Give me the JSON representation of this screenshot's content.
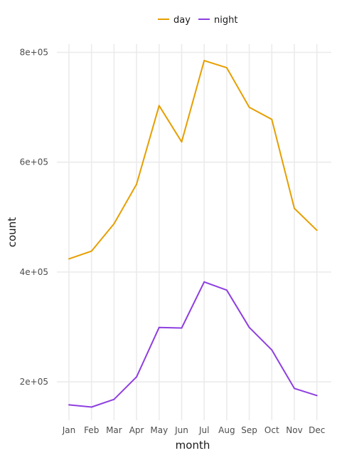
{
  "chart_data": {
    "type": "line",
    "xlabel": "month",
    "ylabel": "count",
    "categories": [
      "Jan",
      "Feb",
      "Mar",
      "Apr",
      "May",
      "Jun",
      "Jul",
      "Aug",
      "Sep",
      "Oct",
      "Nov",
      "Dec"
    ],
    "series": [
      {
        "name": "day",
        "color": "#E69F00",
        "values": [
          424000,
          438000,
          488000,
          560000,
          703000,
          637000,
          785000,
          772000,
          700000,
          678000,
          516000,
          476000
        ]
      },
      {
        "name": "night",
        "color": "#8E3FE0",
        "values": [
          158000,
          154000,
          168000,
          209000,
          299000,
          298000,
          382000,
          367000,
          299000,
          258000,
          188000,
          175000
        ]
      }
    ],
    "ylim": [
      130000,
      815000
    ],
    "yticks": [
      200000,
      400000,
      600000,
      800000
    ],
    "ytick_labels": [
      "2e+05",
      "4e+05",
      "6e+05",
      "8e+05"
    ],
    "legend_position": "top",
    "grid": true
  }
}
